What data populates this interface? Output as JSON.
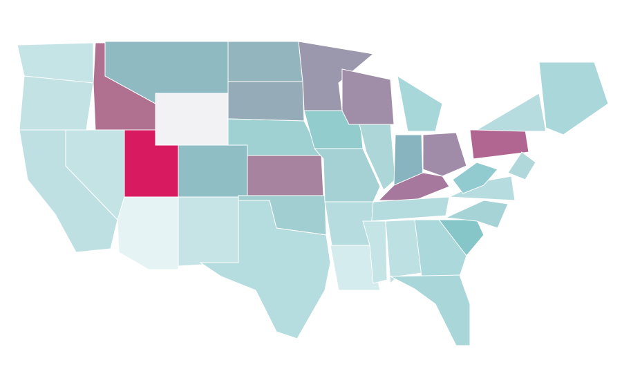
{
  "map": {
    "background": "#ffffff",
    "border_color": "#ffffff",
    "regions": [
      {
        "color": "#c5e4e6"
      },
      {
        "color": "#c2e2e4"
      },
      {
        "color": "#bfe0e2"
      },
      {
        "color": "#c4e3e5"
      },
      {
        "color": "#b07090"
      },
      {
        "color": "#8fbac2"
      },
      {
        "color": "#f2f2f4"
      },
      {
        "color": "#d81b60"
      },
      {
        "color": "#e6f3f4"
      },
      {
        "color": "#8fbfc4"
      },
      {
        "color": "#c6e3e5"
      },
      {
        "color": "#93b5be"
      },
      {
        "color": "#95acb8"
      },
      {
        "color": "#9fd0d2"
      },
      {
        "color": "#a7839f"
      },
      {
        "color": "#a1cfd1"
      },
      {
        "color": "#b5dcde"
      },
      {
        "color": "#9b97ad"
      },
      {
        "color": "#93cccd"
      },
      {
        "color": "#a5d1d4"
      },
      {
        "color": "#a08ea9"
      },
      {
        "color": "#acd6d8"
      },
      {
        "color": "#88b4bf"
      },
      {
        "color": "#a8d7da"
      },
      {
        "color": "#a08ca9"
      },
      {
        "color": "#a6789d"
      },
      {
        "color": "#b4dbdd"
      },
      {
        "color": "#b7dcdf"
      },
      {
        "color": "#d5ecee"
      },
      {
        "color": "#c5e4e5"
      },
      {
        "color": "#bde0e2"
      },
      {
        "color": "#abd8da"
      },
      {
        "color": "#a9d6d8"
      },
      {
        "color": "#86c6c8"
      },
      {
        "color": "#a6d4d6"
      },
      {
        "color": "#b7dcdf"
      },
      {
        "color": "#92cbcf"
      },
      {
        "color": "#b06690"
      },
      {
        "color": "#b6dcdf"
      },
      {
        "color": "#a9d7da"
      },
      {
        "color": "#b0d8db"
      }
    ]
  }
}
